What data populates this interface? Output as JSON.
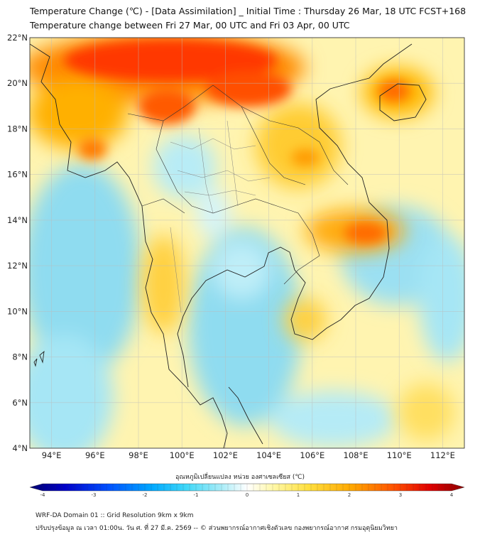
{
  "header": {
    "title_line1": "Temperature Change (℃) - [Data Assimilation] _ Initial Time : Thursday 26 Mar, 18 UTC FCST+168",
    "title_line2": "Temperature change between Fri 27 Mar, 00 UTC and Fri 03 Apr, 00 UTC"
  },
  "map": {
    "lat_labels": [
      "22°N",
      "20°N",
      "18°N",
      "16°N",
      "14°N",
      "12°N",
      "10°N",
      "8°N",
      "6°N",
      "4°N"
    ],
    "lon_labels": [
      "94°E",
      "96°E",
      "98°E",
      "100°E",
      "102°E",
      "104°E",
      "106°E",
      "108°E",
      "110°E",
      "112°E"
    ],
    "lat_range": [
      4,
      22
    ],
    "lon_range": [
      93,
      113
    ],
    "land_color": "#fff2a0",
    "sea_color": "#7fd8ee"
  },
  "colorbar": {
    "title": "อุณหภูมิเปลี่ยนแปลง หน่วย องศาเซลเซียส (℃)",
    "ticks": [
      "-4",
      "-3",
      "-2",
      "-1",
      "0",
      "1",
      "2",
      "3",
      "4"
    ],
    "range": [
      -4,
      4
    ],
    "colors": [
      "#00006e",
      "#0000c8",
      "#0050ff",
      "#00a8ff",
      "#40d8f8",
      "#a8ecf8",
      "#ffffff",
      "#fff8a8",
      "#ffe040",
      "#ffa800",
      "#ff5000",
      "#e00000",
      "#8c0000"
    ]
  },
  "footer": {
    "line1": "WRF-DA Domain 01 :: Grid Resolution 9km x 9km",
    "line2": "ปรับปรุงข้อมูล ณ เวลา 01:00น. วัน ศ. ที่ 27 มี.ค. 2569 -- © ส่วนพยากรณ์อากาศเชิงตัวเลข กองพยากรณ์อากาศ กรมอุตุนิยมวิทยา"
  }
}
